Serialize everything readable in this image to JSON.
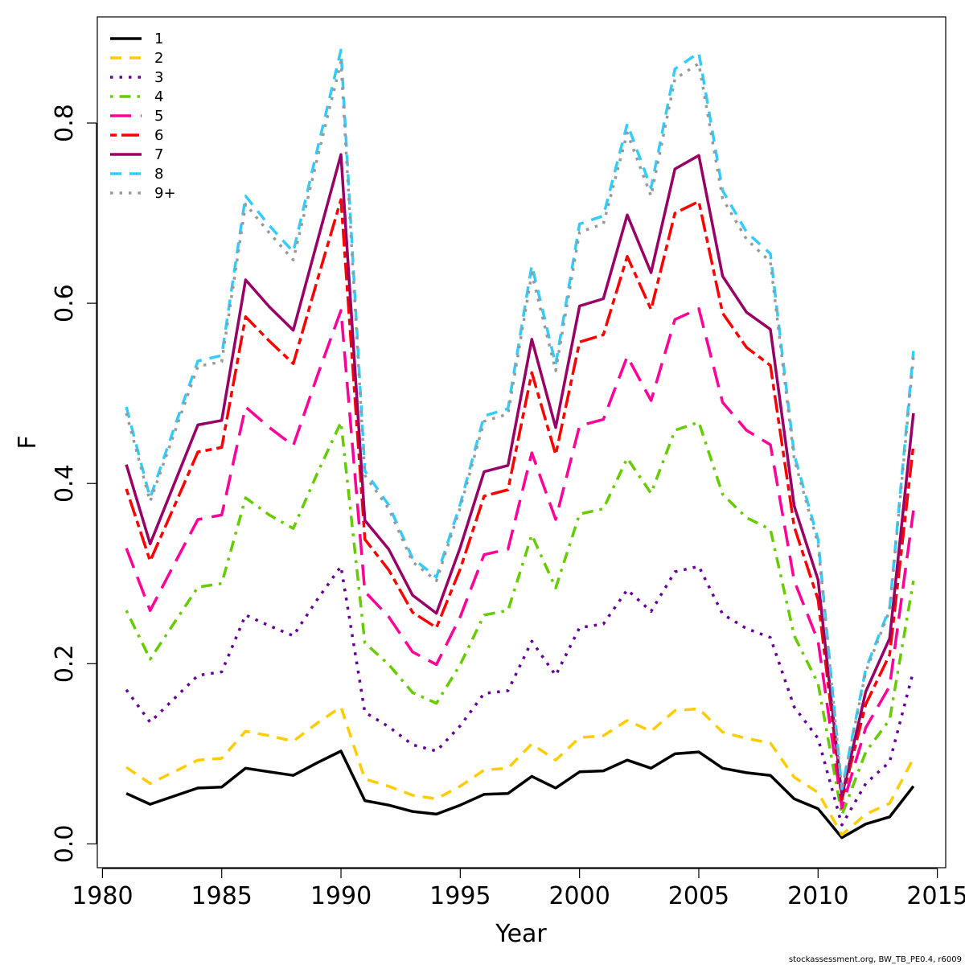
{
  "chart_data": {
    "type": "line",
    "title": "",
    "xlabel": "Year",
    "ylabel": "F",
    "xlim": [
      1980,
      2015
    ],
    "ylim": [
      0.0,
      0.9
    ],
    "x_ticks": [
      1980,
      1985,
      1990,
      1995,
      2000,
      2005,
      2010,
      2015
    ],
    "y_ticks": [
      "0.0",
      "0.2",
      "0.4",
      "0.6",
      "0.8"
    ],
    "grid": false,
    "legend_position": "top-left",
    "footer": "stockassessment.org, BW_TB_PE0.4, r6009",
    "x": [
      1981,
      1982,
      1983,
      1984,
      1985,
      1986,
      1987,
      1988,
      1989,
      1990,
      1991,
      1992,
      1993,
      1994,
      1995,
      1996,
      1997,
      1998,
      1999,
      2000,
      2001,
      2002,
      2003,
      2004,
      2005,
      2006,
      2007,
      2008,
      2009,
      2010,
      2011,
      2012,
      2013,
      2014
    ],
    "series": [
      {
        "name": "1",
        "color": "#000000",
        "dash": "solid",
        "values": [
          0.056,
          0.044,
          0.053,
          0.062,
          0.063,
          0.084,
          0.08,
          0.076,
          0.09,
          0.103,
          0.048,
          0.043,
          0.036,
          0.033,
          0.043,
          0.055,
          0.056,
          0.075,
          0.062,
          0.08,
          0.081,
          0.093,
          0.084,
          0.1,
          0.102,
          0.084,
          0.079,
          0.076,
          0.05,
          0.039,
          0.007,
          0.022,
          0.03,
          0.064
        ]
      },
      {
        "name": "2",
        "color": "#FFCC00",
        "dash": "dashed",
        "values": [
          0.085,
          0.067,
          0.08,
          0.093,
          0.095,
          0.125,
          0.12,
          0.114,
          0.134,
          0.152,
          0.072,
          0.064,
          0.054,
          0.05,
          0.064,
          0.082,
          0.084,
          0.111,
          0.093,
          0.118,
          0.12,
          0.137,
          0.125,
          0.148,
          0.15,
          0.124,
          0.117,
          0.112,
          0.074,
          0.057,
          0.01,
          0.033,
          0.045,
          0.095
        ]
      },
      {
        "name": "3",
        "color": "#660099",
        "dash": "dotted",
        "values": [
          0.171,
          0.135,
          0.161,
          0.187,
          0.191,
          0.254,
          0.242,
          0.231,
          0.271,
          0.308,
          0.146,
          0.13,
          0.11,
          0.103,
          0.131,
          0.167,
          0.17,
          0.225,
          0.187,
          0.24,
          0.244,
          0.282,
          0.258,
          0.302,
          0.308,
          0.255,
          0.239,
          0.229,
          0.152,
          0.117,
          0.021,
          0.067,
          0.091,
          0.192
        ]
      },
      {
        "name": "4",
        "color": "#66CC00",
        "dash": "dotdash",
        "values": [
          0.259,
          0.205,
          0.245,
          0.285,
          0.289,
          0.384,
          0.365,
          0.35,
          0.411,
          0.468,
          0.223,
          0.199,
          0.168,
          0.156,
          0.199,
          0.254,
          0.259,
          0.343,
          0.284,
          0.366,
          0.372,
          0.428,
          0.389,
          0.459,
          0.468,
          0.388,
          0.362,
          0.349,
          0.231,
          0.178,
          0.032,
          0.102,
          0.138,
          0.292
        ]
      },
      {
        "name": "5",
        "color": "#FF0099",
        "dash": "longdash",
        "values": [
          0.328,
          0.259,
          0.31,
          0.36,
          0.365,
          0.485,
          0.462,
          0.442,
          0.519,
          0.592,
          0.28,
          0.252,
          0.213,
          0.199,
          0.252,
          0.321,
          0.327,
          0.434,
          0.36,
          0.464,
          0.471,
          0.541,
          0.492,
          0.582,
          0.594,
          0.49,
          0.459,
          0.443,
          0.292,
          0.225,
          0.04,
          0.129,
          0.175,
          0.37
        ]
      },
      {
        "name": "6",
        "color": "#FF0000",
        "dash": "twodash",
        "values": [
          0.394,
          0.314,
          0.374,
          0.435,
          0.44,
          0.585,
          0.558,
          0.533,
          0.625,
          0.715,
          0.338,
          0.304,
          0.257,
          0.24,
          0.305,
          0.386,
          0.393,
          0.523,
          0.432,
          0.557,
          0.565,
          0.652,
          0.593,
          0.7,
          0.713,
          0.589,
          0.551,
          0.531,
          0.352,
          0.271,
          0.049,
          0.155,
          0.21,
          0.443
        ]
      },
      {
        "name": "7",
        "color": "#990066",
        "dash": "solid",
        "values": [
          0.421,
          0.333,
          0.399,
          0.465,
          0.47,
          0.626,
          0.596,
          0.57,
          0.668,
          0.765,
          0.359,
          0.327,
          0.276,
          0.256,
          0.329,
          0.413,
          0.42,
          0.56,
          0.462,
          0.597,
          0.605,
          0.698,
          0.634,
          0.749,
          0.764,
          0.63,
          0.59,
          0.571,
          0.375,
          0.293,
          0.053,
          0.169,
          0.228,
          0.478
        ]
      },
      {
        "name": "8",
        "color": "#33CCFF",
        "dash": "dashed",
        "values": [
          0.485,
          0.384,
          0.461,
          0.536,
          0.542,
          0.719,
          0.686,
          0.657,
          0.77,
          0.881,
          0.414,
          0.376,
          0.317,
          0.296,
          0.377,
          0.475,
          0.483,
          0.642,
          0.532,
          0.688,
          0.697,
          0.799,
          0.728,
          0.86,
          0.878,
          0.725,
          0.679,
          0.655,
          0.432,
          0.338,
          0.061,
          0.194,
          0.262,
          0.547
        ]
      },
      {
        "name": "9+",
        "color": "#999999",
        "dash": "dotted",
        "values": [
          0.478,
          0.38,
          0.455,
          0.53,
          0.535,
          0.71,
          0.678,
          0.648,
          0.76,
          0.868,
          0.409,
          0.372,
          0.313,
          0.292,
          0.373,
          0.469,
          0.477,
          0.633,
          0.525,
          0.679,
          0.688,
          0.789,
          0.719,
          0.849,
          0.866,
          0.716,
          0.671,
          0.646,
          0.427,
          0.333,
          0.06,
          0.191,
          0.259,
          0.54
        ]
      }
    ]
  }
}
